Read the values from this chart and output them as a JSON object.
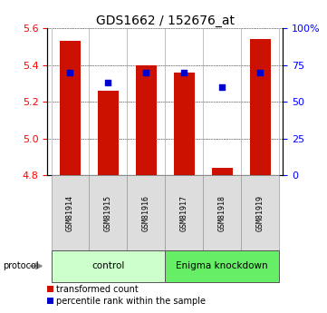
{
  "title": "GDS1662 / 152676_at",
  "samples": [
    "GSM81914",
    "GSM81915",
    "GSM81916",
    "GSM81917",
    "GSM81918",
    "GSM81919"
  ],
  "bar_values": [
    5.53,
    5.26,
    5.4,
    5.36,
    4.84,
    5.54
  ],
  "percentile_values": [
    70,
    63,
    70,
    70,
    60,
    70
  ],
  "ylim_left": [
    4.8,
    5.6
  ],
  "ylim_right": [
    0,
    100
  ],
  "yticks_left": [
    4.8,
    5.0,
    5.2,
    5.4,
    5.6
  ],
  "yticks_right": [
    0,
    25,
    50,
    75,
    100
  ],
  "bar_color": "#cc1100",
  "percentile_color": "#0000cc",
  "bg_color": "#ffffff",
  "groups": [
    {
      "label": "control",
      "start": 0,
      "end": 3,
      "color": "#ccffcc"
    },
    {
      "label": "Enigma knockdown",
      "start": 3,
      "end": 6,
      "color": "#66ee66"
    }
  ],
  "protocol_label": "protocol",
  "legend_bar_label": "transformed count",
  "legend_pct_label": "percentile rank within the sample",
  "title_fontsize": 10,
  "tick_fontsize": 8,
  "sample_fontsize": 6,
  "group_fontsize": 7.5,
  "legend_fontsize": 7
}
